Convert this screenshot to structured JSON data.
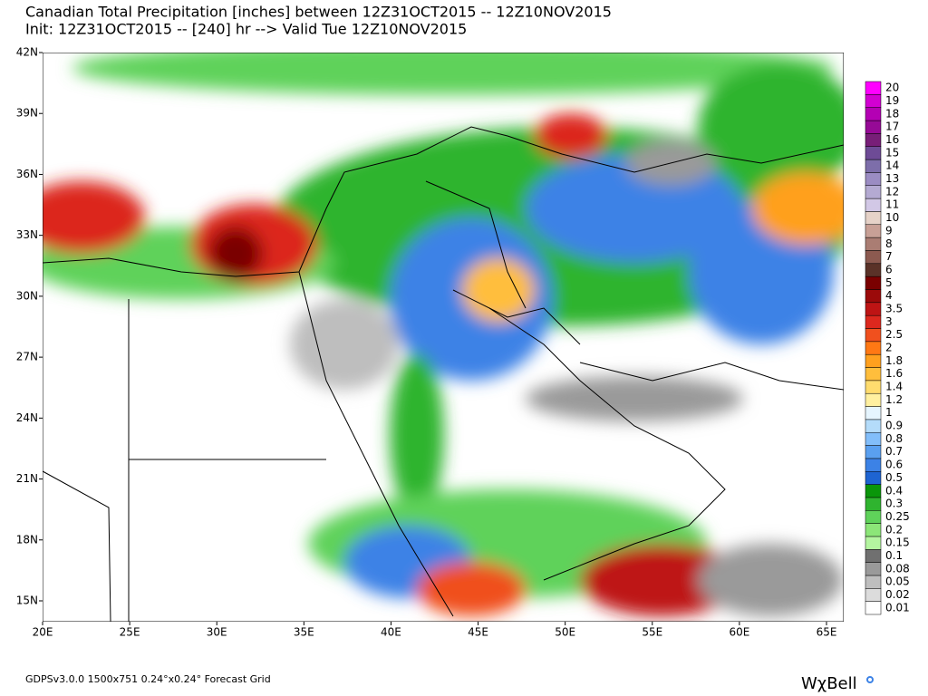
{
  "header": {
    "title": "Canadian Total Precipitation [inches] between 12Z31OCT2015 -- 12Z10NOV2015",
    "subtitle": "Init: 12Z31OCT2015 -- [240] hr --> Valid Tue 12Z10NOV2015"
  },
  "map": {
    "lat_labels": [
      "42N",
      "39N",
      "36N",
      "33N",
      "30N",
      "27N",
      "24N",
      "21N",
      "18N",
      "15N"
    ],
    "lon_labels": [
      "20E",
      "25E",
      "30E",
      "35E",
      "40E",
      "45E",
      "50E",
      "55E",
      "60E",
      "65E"
    ]
  },
  "colorbar": {
    "levels": [
      "0.01",
      "0.02",
      "0.05",
      "0.08",
      "0.1",
      "0.15",
      "0.2",
      "0.25",
      "0.3",
      "0.4",
      "0.5",
      "0.6",
      "0.7",
      "0.8",
      "0.9",
      "1",
      "1.2",
      "1.4",
      "1.6",
      "1.8",
      "2",
      "2.5",
      "3",
      "3.5",
      "4",
      "5",
      "6",
      "7",
      "8",
      "9",
      "10",
      "11",
      "12",
      "13",
      "14",
      "15",
      "16",
      "17",
      "18",
      "19",
      "20"
    ],
    "colors": [
      "#ffffff",
      "#dcdcdc",
      "#bebebe",
      "#9a9a9a",
      "#707070",
      "#b4f5a0",
      "#8ce678",
      "#5fd25a",
      "#2fb42f",
      "#0a960a",
      "#1e64d2",
      "#3c82e6",
      "#5aa0f0",
      "#82befa",
      "#b4dcfa",
      "#e6f5ff",
      "#fff0a0",
      "#ffdc6e",
      "#ffbe3c",
      "#ffa01e",
      "#ff7814",
      "#f0501e",
      "#dc281e",
      "#be1414",
      "#9b0a0a",
      "#7a0000",
      "#5a3228",
      "#8c5a50",
      "#aa7d73",
      "#c8a096",
      "#e6d2c8",
      "#d2c8e6",
      "#b4aad2",
      "#9b8cc3",
      "#7d6eaa",
      "#6e4b96",
      "#781e78",
      "#960a96",
      "#b400b4",
      "#d200d2",
      "#ff00ff"
    ]
  },
  "footer": {
    "grid_info": "GDPSv3.0.0 1500x751 0.24°x0.24° Forecast Grid",
    "logo": "WχBell"
  }
}
